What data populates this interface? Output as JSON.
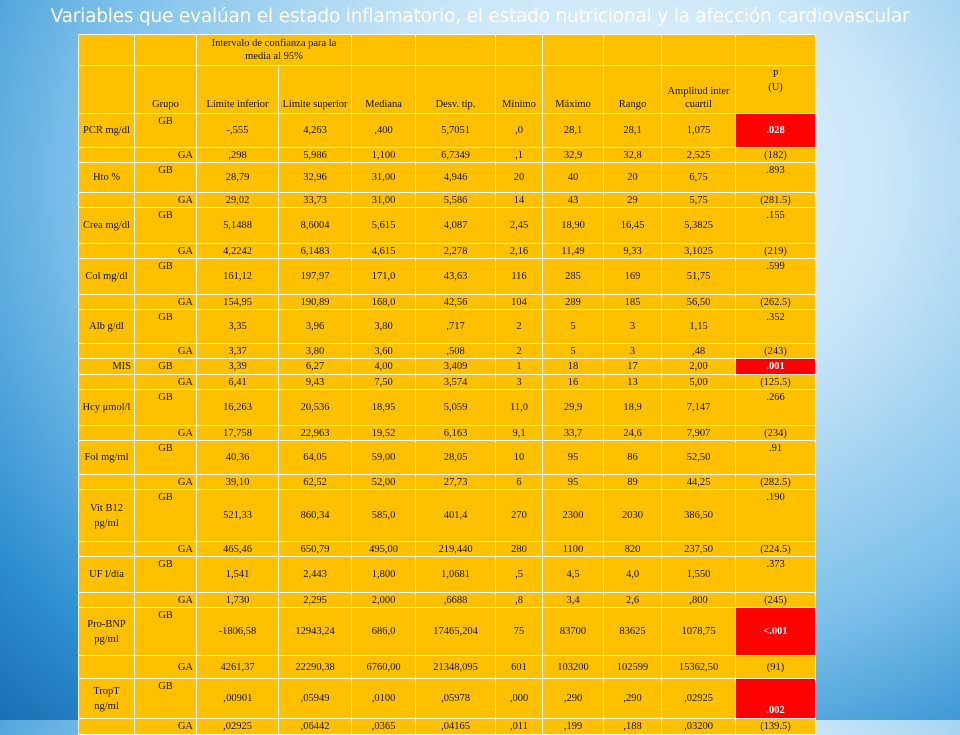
{
  "slide": {
    "title": "Variables que evalúan el estado inflamatorio, el estado nutricional y la afección cardiovascular"
  },
  "header": {
    "ci": "Intervalo de confianza para la media al 95%",
    "grupo": "Grupo",
    "lim_inf": "Límite inferior",
    "lim_sup": "Límite superior",
    "mediana": "Mediana",
    "desv": "Desv. típ.",
    "min": "Mínimo",
    "max": "Máximo",
    "rango": "Rango",
    "amplitud": "Amplitud inter cuartil",
    "p": "P",
    "u": "(U)"
  },
  "rows": [
    {
      "label": "PCR mg/dl",
      "gb": [
        "-,555",
        "4,263",
        ",400",
        "5,7051",
        ",0",
        "28,1",
        "28,1",
        "1,075"
      ],
      "p": ".028",
      "p_sig": true,
      "ga": [
        "GA",
        ",298",
        "5,986",
        "1,100",
        "6,7349",
        ",1",
        "32,9",
        "32,8",
        "2,525"
      ],
      "u": "(182)"
    },
    {
      "label": "Hto %",
      "gb": [
        "28,79",
        "32,96",
        "31,00",
        "4,946",
        "20",
        "40",
        "20",
        "6,75"
      ],
      "p": ".893",
      "p_sig": false,
      "ga": [
        "GA",
        "29,02",
        "33,73",
        "31,00",
        "5,586",
        "14",
        "43",
        "29",
        "5,75"
      ],
      "u": "(281.5)"
    },
    {
      "label": "Crea mg/dl",
      "gb": [
        "5,1488",
        "8,6004",
        "5,615",
        "4,087",
        "2,45",
        "18,90",
        "16,45",
        "5,3825"
      ],
      "p": ".155",
      "p_sig": false,
      "ga": [
        "GA",
        "4,2242",
        "6,1483",
        "4,615",
        "2,278",
        "2,16",
        "11,49",
        "9,33",
        "3,1025"
      ],
      "u": "(219)"
    },
    {
      "label": "Col mg/dl",
      "gb": [
        "161,12",
        "197,97",
        "171,0",
        "43,63",
        "116",
        "285",
        "169",
        "51,75"
      ],
      "p": ".599",
      "p_sig": false,
      "ga": [
        "GA",
        "154,95",
        "190,89",
        "168,0",
        "42,56",
        "104",
        "289",
        "185",
        "56,50"
      ],
      "u": "(262.5)"
    },
    {
      "label": "Alb g/dl",
      "gb": [
        "3,35",
        "3,96",
        "3,80",
        ",717",
        "2",
        "5",
        "3",
        "1,15"
      ],
      "p": ".352",
      "p_sig": false,
      "ga": [
        "GA",
        "3,37",
        "3,80",
        "3,60",
        ",508",
        "2",
        "5",
        "3",
        ",48"
      ],
      "u": "(243)"
    },
    {
      "label": "MIS",
      "gb": [
        "3,39",
        "6,27",
        "4,00",
        "3,409",
        "1",
        "18",
        "17",
        "2,00"
      ],
      "p": ".001",
      "p_sig": true,
      "ga": [
        "GA",
        "6,41",
        "9,43",
        "7,50",
        "3,574",
        "3",
        "16",
        "13",
        "5,00"
      ],
      "u": "(125.5)"
    },
    {
      "label": "Hcy μmol/l",
      "gb": [
        "16,263",
        "20,536",
        "18,95",
        "5,059",
        "11,0",
        "29,9",
        "18,9",
        "7,147"
      ],
      "p": ".266",
      "p_sig": false,
      "ga": [
        "GA",
        "17,758",
        "22,963",
        "19,52",
        "6,163",
        "9,1",
        "33,7",
        "24,6",
        "7,907"
      ],
      "u": "(234)"
    },
    {
      "label": "Fol mg/ml",
      "gb": [
        "40,36",
        "64,05",
        "59,00",
        "28,05",
        "10",
        "95",
        "86",
        "52,50"
      ],
      "p": ".91",
      "p_sig": false,
      "ga": [
        "GA",
        "39,10",
        "62,52",
        "52,00",
        "27,73",
        "6",
        "95",
        "89",
        "44,25"
      ],
      "u": "(282.5)"
    },
    {
      "label": "Vit B12 pg/ml",
      "gb": [
        "521,33",
        "860,34",
        "585,0",
        "401,4",
        "270",
        "2300",
        "2030",
        "386,50"
      ],
      "p": ".190",
      "p_sig": false,
      "ga": [
        "GA",
        "465,46",
        "650,79",
        "495,00",
        "219,440",
        "280",
        "1100",
        "820",
        "237,50"
      ],
      "u": "(224.5)"
    },
    {
      "label": "UF l/día",
      "gb": [
        "1,541",
        "2,443",
        "1,800",
        "1,0681",
        ",5",
        "4,5",
        "4,0",
        "1,550"
      ],
      "p": ".373",
      "p_sig": false,
      "ga": [
        "GA",
        "1,730",
        "2,295",
        "2,000",
        ",6688",
        ",8",
        "3,4",
        "2,6",
        ",800"
      ],
      "u": "(245)"
    },
    {
      "label": "Pro-BNP pg/ml",
      "gb": [
        "-1806,58",
        "12943,24",
        "686,0",
        "17465,204",
        "75",
        "83700",
        "83625",
        "1078,75"
      ],
      "p": "<.001",
      "p_sig": true,
      "ga": [
        "GA",
        "4261,37",
        "22290,38",
        "6760,00",
        "21348,095",
        "601",
        "103200",
        "102599",
        "15362,50"
      ],
      "u": "(91)"
    },
    {
      "label": "TropT ng/ml",
      "gb": [
        "‚00901",
        ",05949",
        ",0100",
        ",05978",
        ",000",
        ",290",
        ",290",
        ",02925"
      ],
      "p": ".002",
      "p_sig": true,
      "ga": [
        "GA",
        ",02925",
        ",06442",
        ",0365",
        ",04165",
        ",011",
        ",199",
        ",188",
        ",03200"
      ],
      "u": "(139.5)"
    }
  ],
  "group_gb": "GB"
}
